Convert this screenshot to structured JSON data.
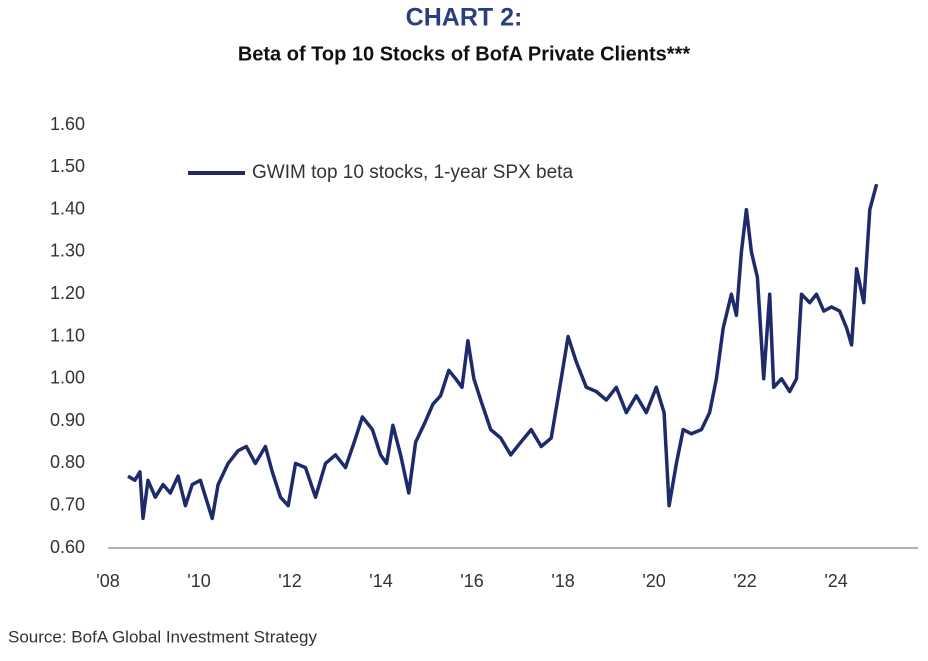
{
  "chart_data": {
    "type": "line",
    "title": "CHART 2:",
    "subtitle": "Beta of Top 10 Stocks of BofA Private Clients***",
    "source": "Source: BofA Global Investment Strategy",
    "legend": "top-left",
    "xlim": [
      2008,
      2025.8
    ],
    "xticks": [
      {
        "value": 2008,
        "label": "'08"
      },
      {
        "value": 2010,
        "label": "'10"
      },
      {
        "value": 2012,
        "label": "'12"
      },
      {
        "value": 2014,
        "label": "'14"
      },
      {
        "value": 2016,
        "label": "'16"
      },
      {
        "value": 2018,
        "label": "'18"
      },
      {
        "value": 2020,
        "label": "'20"
      },
      {
        "value": 2022,
        "label": "'22"
      },
      {
        "value": 2024,
        "label": "'24"
      }
    ],
    "ylim": [
      0.6,
      1.6
    ],
    "yticks": [
      {
        "value": 0.6,
        "label": "0.60"
      },
      {
        "value": 0.7,
        "label": "0.70"
      },
      {
        "value": 0.8,
        "label": "0.80"
      },
      {
        "value": 0.9,
        "label": "0.90"
      },
      {
        "value": 1.0,
        "label": "1.00"
      },
      {
        "value": 1.1,
        "label": "1.10"
      },
      {
        "value": 1.2,
        "label": "1.20"
      },
      {
        "value": 1.3,
        "label": "1.30"
      },
      {
        "value": 1.4,
        "label": "1.40"
      },
      {
        "value": 1.5,
        "label": "1.50"
      },
      {
        "value": 1.6,
        "label": "1.60"
      }
    ],
    "x": [
      2008.44,
      2008.59,
      2008.7,
      2008.77,
      2008.88,
      2009.04,
      2009.21,
      2009.37,
      2009.54,
      2009.7,
      2009.85,
      2010.03,
      2010.29,
      2010.42,
      2010.64,
      2010.86,
      2011.04,
      2011.24,
      2011.46,
      2011.61,
      2011.79,
      2011.96,
      2012.12,
      2012.34,
      2012.56,
      2012.78,
      2013.0,
      2013.22,
      2013.44,
      2013.59,
      2013.81,
      2013.99,
      2014.12,
      2014.26,
      2014.43,
      2014.61,
      2014.76,
      2014.98,
      2015.14,
      2015.31,
      2015.49,
      2015.64,
      2015.78,
      2015.91,
      2016.04,
      2016.19,
      2016.41,
      2016.63,
      2016.85,
      2017.07,
      2017.3,
      2017.52,
      2017.74,
      2017.96,
      2018.11,
      2018.29,
      2018.51,
      2018.73,
      2018.95,
      2019.17,
      2019.39,
      2019.61,
      2019.83,
      2020.05,
      2020.22,
      2020.33,
      2020.49,
      2020.64,
      2020.82,
      2021.04,
      2021.22,
      2021.37,
      2021.52,
      2021.7,
      2021.81,
      2021.92,
      2022.03,
      2022.14,
      2022.27,
      2022.41,
      2022.54,
      2022.63,
      2022.8,
      2022.98,
      2023.13,
      2023.24,
      2023.42,
      2023.57,
      2023.73,
      2023.9,
      2024.08,
      2024.23,
      2024.34,
      2024.45,
      2024.61,
      2024.74,
      2024.89
    ],
    "series": [
      {
        "name": "GWIM top 10 stocks, 1-year SPX beta",
        "color": "#1f2a6b",
        "values": [
          0.77,
          0.76,
          0.78,
          0.67,
          0.76,
          0.72,
          0.75,
          0.73,
          0.77,
          0.7,
          0.75,
          0.76,
          0.67,
          0.75,
          0.8,
          0.83,
          0.84,
          0.8,
          0.84,
          0.78,
          0.72,
          0.7,
          0.8,
          0.79,
          0.72,
          0.8,
          0.82,
          0.79,
          0.86,
          0.91,
          0.88,
          0.82,
          0.8,
          0.89,
          0.82,
          0.73,
          0.85,
          0.9,
          0.94,
          0.96,
          1.02,
          1.0,
          0.98,
          1.09,
          1.0,
          0.95,
          0.88,
          0.86,
          0.82,
          0.85,
          0.88,
          0.84,
          0.86,
          1.0,
          1.1,
          1.04,
          0.98,
          0.97,
          0.95,
          0.98,
          0.92,
          0.96,
          0.92,
          0.98,
          0.92,
          0.7,
          0.8,
          0.88,
          0.87,
          0.88,
          0.92,
          1.0,
          1.12,
          1.2,
          1.15,
          1.3,
          1.4,
          1.3,
          1.24,
          1.0,
          1.2,
          0.98,
          1.0,
          0.97,
          1.0,
          1.2,
          1.18,
          1.2,
          1.16,
          1.17,
          1.16,
          1.12,
          1.08,
          1.26,
          1.18,
          1.4,
          1.46
        ]
      }
    ]
  }
}
